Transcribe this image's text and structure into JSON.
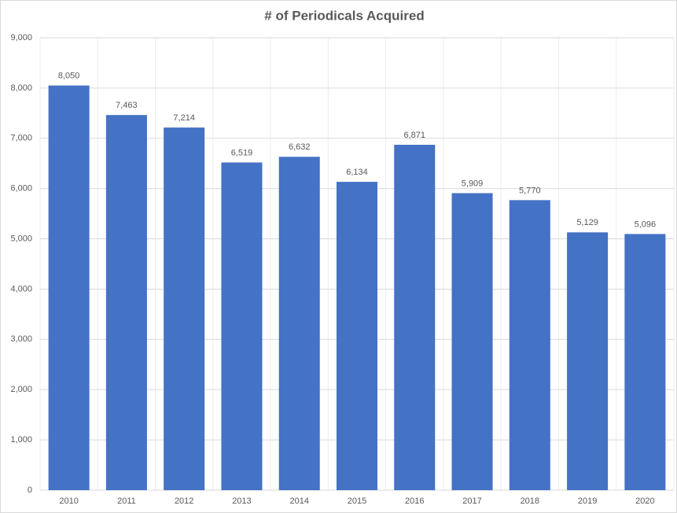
{
  "chart_data": {
    "type": "bar",
    "title": "# of Periodicals Acquired",
    "categories": [
      "2010",
      "2011",
      "2012",
      "2013",
      "2014",
      "2015",
      "2016",
      "2017",
      "2018",
      "2019",
      "2020"
    ],
    "values": [
      8050,
      7463,
      7214,
      6519,
      6632,
      6134,
      6871,
      5909,
      5770,
      5129,
      5096
    ],
    "value_labels": [
      "8,050",
      "7,463",
      "7,214",
      "6,519",
      "6,632",
      "6,134",
      "6,871",
      "5,909",
      "5,770",
      "5,129",
      "5,096"
    ],
    "color": "#4472c4",
    "ylim": [
      0,
      9000
    ],
    "yticks": [
      0,
      {
        "value": 1000,
        "label": "1,000"
      },
      {
        "value": 2000,
        "label": "2,000"
      },
      {
        "value": 3000,
        "label": "3,000"
      },
      {
        "value": 4000,
        "label": "4,000"
      },
      {
        "value": 5000,
        "label": "5,000"
      },
      {
        "value": 6000,
        "label": "6,000"
      },
      {
        "value": 7000,
        "label": "7,000"
      },
      {
        "value": 8000,
        "label": "8,000"
      },
      {
        "value": 9000,
        "label": "9,000"
      }
    ],
    "grid": true
  }
}
